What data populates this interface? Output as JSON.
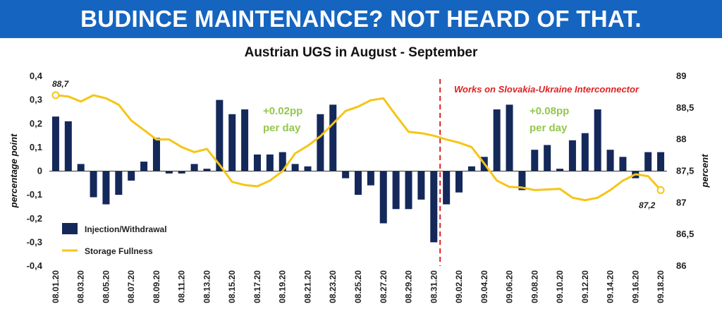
{
  "header": {
    "title": "BUDINCE MAINTENANCE? NOT HEARD OF THAT."
  },
  "colors": {
    "banner": "#1565c0",
    "bars": "#14285a",
    "line": "#f5c518",
    "annotation_green": "#92c84c",
    "annotation_red": "#e02020"
  },
  "chart_data": {
    "type": "bar+line",
    "title": "Austrian UGS in August - September",
    "ylabel_left": "percentage point",
    "ylabel_right": "percent",
    "ylim_left": [
      -0.4,
      0.4
    ],
    "ylim_right": [
      86,
      89
    ],
    "yticks_left": [
      "0,4",
      "0,3",
      "0,2",
      "0,1",
      "0",
      "-0,1",
      "-0,2",
      "-0,3",
      "-0,4"
    ],
    "yticks_right": [
      "89",
      "88,5",
      "88",
      "87,5",
      "87",
      "86,5",
      "86"
    ],
    "categories": [
      "08.01.20",
      "08.02.20",
      "08.03.20",
      "08.04.20",
      "08.05.20",
      "08.06.20",
      "08.07.20",
      "08.08.20",
      "08.09.20",
      "08.10.20",
      "08.11.20",
      "08.12.20",
      "08.13.20",
      "08.14.20",
      "08.15.20",
      "08.16.20",
      "08.17.20",
      "08.18.20",
      "08.19.20",
      "08.20.20",
      "08.21.20",
      "08.22.20",
      "08.23.20",
      "08.24.20",
      "08.25.20",
      "08.26.20",
      "08.27.20",
      "08.28.20",
      "08.29.20",
      "08.30.20",
      "08.31.20",
      "09.01.20",
      "09.02.20",
      "09.03.20",
      "09.04.20",
      "09.05.20",
      "09.06.20",
      "09.07.20",
      "09.08.20",
      "09.09.20",
      "09.10.20",
      "09.11.20",
      "09.12.20",
      "09.13.20",
      "09.14.20",
      "09.15.20",
      "09.16.20",
      "09.17.20",
      "09.18.20"
    ],
    "x_tick_labels": [
      "08.01.20",
      "08.03.20",
      "08.05.20",
      "08.07.20",
      "08.09.20",
      "08.11.20",
      "08.13.20",
      "08.15.20",
      "08.17.20",
      "08.19.20",
      "08.21.20",
      "08.23.20",
      "08.25.20",
      "08.27.20",
      "08.29.20",
      "08.31.20",
      "09.02.20",
      "09.04.20",
      "09.06.20",
      "09.08.20",
      "09.10.20",
      "09.12.20",
      "09.14.20",
      "09.16.20",
      "09.18.20"
    ],
    "series": [
      {
        "name": "Injection/Withdrawal",
        "kind": "bar",
        "axis": "left",
        "values": [
          0.23,
          0.21,
          0.03,
          -0.11,
          -0.14,
          -0.1,
          -0.04,
          0.04,
          0.14,
          -0.01,
          -0.01,
          0.03,
          0.01,
          0.3,
          0.24,
          0.26,
          0.07,
          0.07,
          0.08,
          0.03,
          0.02,
          0.24,
          0.28,
          -0.03,
          -0.1,
          -0.06,
          -0.22,
          -0.16,
          -0.16,
          -0.12,
          -0.3,
          -0.14,
          -0.09,
          0.02,
          0.06,
          0.26,
          0.28,
          -0.08,
          0.09,
          0.11,
          0.01,
          0.13,
          0.16,
          0.26,
          0.09,
          0.06,
          -0.03,
          0.08,
          0.08
        ]
      },
      {
        "name": "Storage Fullness",
        "kind": "line",
        "axis": "right",
        "values": [
          88.7,
          88.68,
          88.6,
          88.7,
          88.65,
          88.55,
          88.3,
          88.15,
          88.0,
          88.0,
          87.88,
          87.8,
          87.85,
          87.6,
          87.33,
          87.28,
          87.26,
          87.35,
          87.5,
          87.78,
          87.9,
          88.05,
          88.25,
          88.45,
          88.52,
          88.62,
          88.65,
          88.38,
          88.12,
          88.1,
          88.06,
          88.0,
          87.95,
          87.88,
          87.62,
          87.35,
          87.25,
          87.24,
          87.2,
          87.21,
          87.22,
          87.08,
          87.04,
          87.08,
          87.2,
          87.35,
          87.45,
          87.42,
          87.2
        ]
      }
    ],
    "annotations": {
      "start_value": "88,7",
      "end_value": "87,2",
      "rate_aug_line1": "+0.02pp",
      "rate_aug_line2": "per day",
      "rate_sep_line1": "+0.08pp",
      "rate_sep_line2": "per day",
      "works": "Works on Slovakia-Ukraine Interconnector",
      "works_marker_after": "08.31.20"
    },
    "legend": {
      "placement": "bottom-left",
      "entries": [
        "Injection/Withdrawal",
        "Storage Fullness"
      ]
    },
    "grid": false
  }
}
